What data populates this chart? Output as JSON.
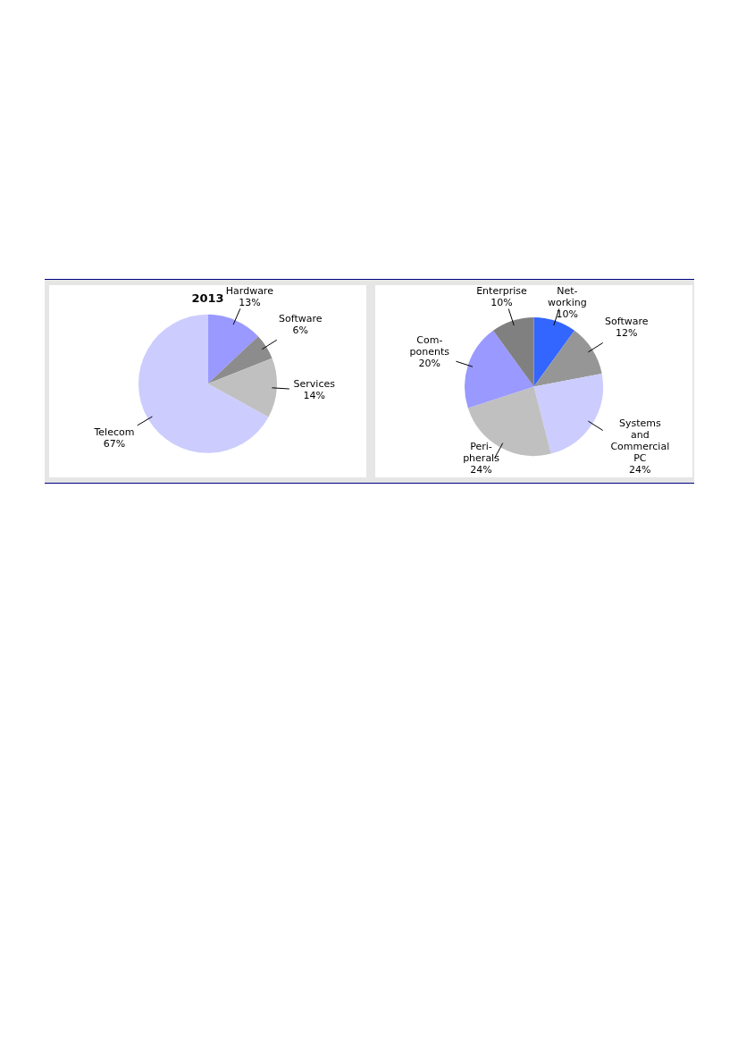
{
  "chart_data": [
    {
      "type": "pie",
      "title": "2013",
      "categories": [
        "Hardware",
        "Software",
        "Services",
        "Telecom"
      ],
      "values": [
        13,
        6,
        14,
        67
      ],
      "colors": [
        "#9999ff",
        "#8c8c8c",
        "#c0c0c0",
        "#ccccff"
      ],
      "value_labels": [
        "13%",
        "6%",
        "14%",
        "67%"
      ],
      "legend": false
    },
    {
      "type": "pie",
      "categories": [
        "Net-\nworking",
        "Software",
        "Systems\nand\nCommercial\nPC",
        "Peri-\npherals",
        "Com-\nponents",
        "Enterprise"
      ],
      "values": [
        10,
        12,
        24,
        24,
        20,
        10
      ],
      "colors": [
        "#3366ff",
        "#969696",
        "#ccccff",
        "#c0c0c0",
        "#9999ff",
        "#808080"
      ],
      "value_labels": [
        "10%",
        "12%",
        "24%",
        "24%",
        "20%",
        "10%"
      ],
      "legend": false
    }
  ]
}
